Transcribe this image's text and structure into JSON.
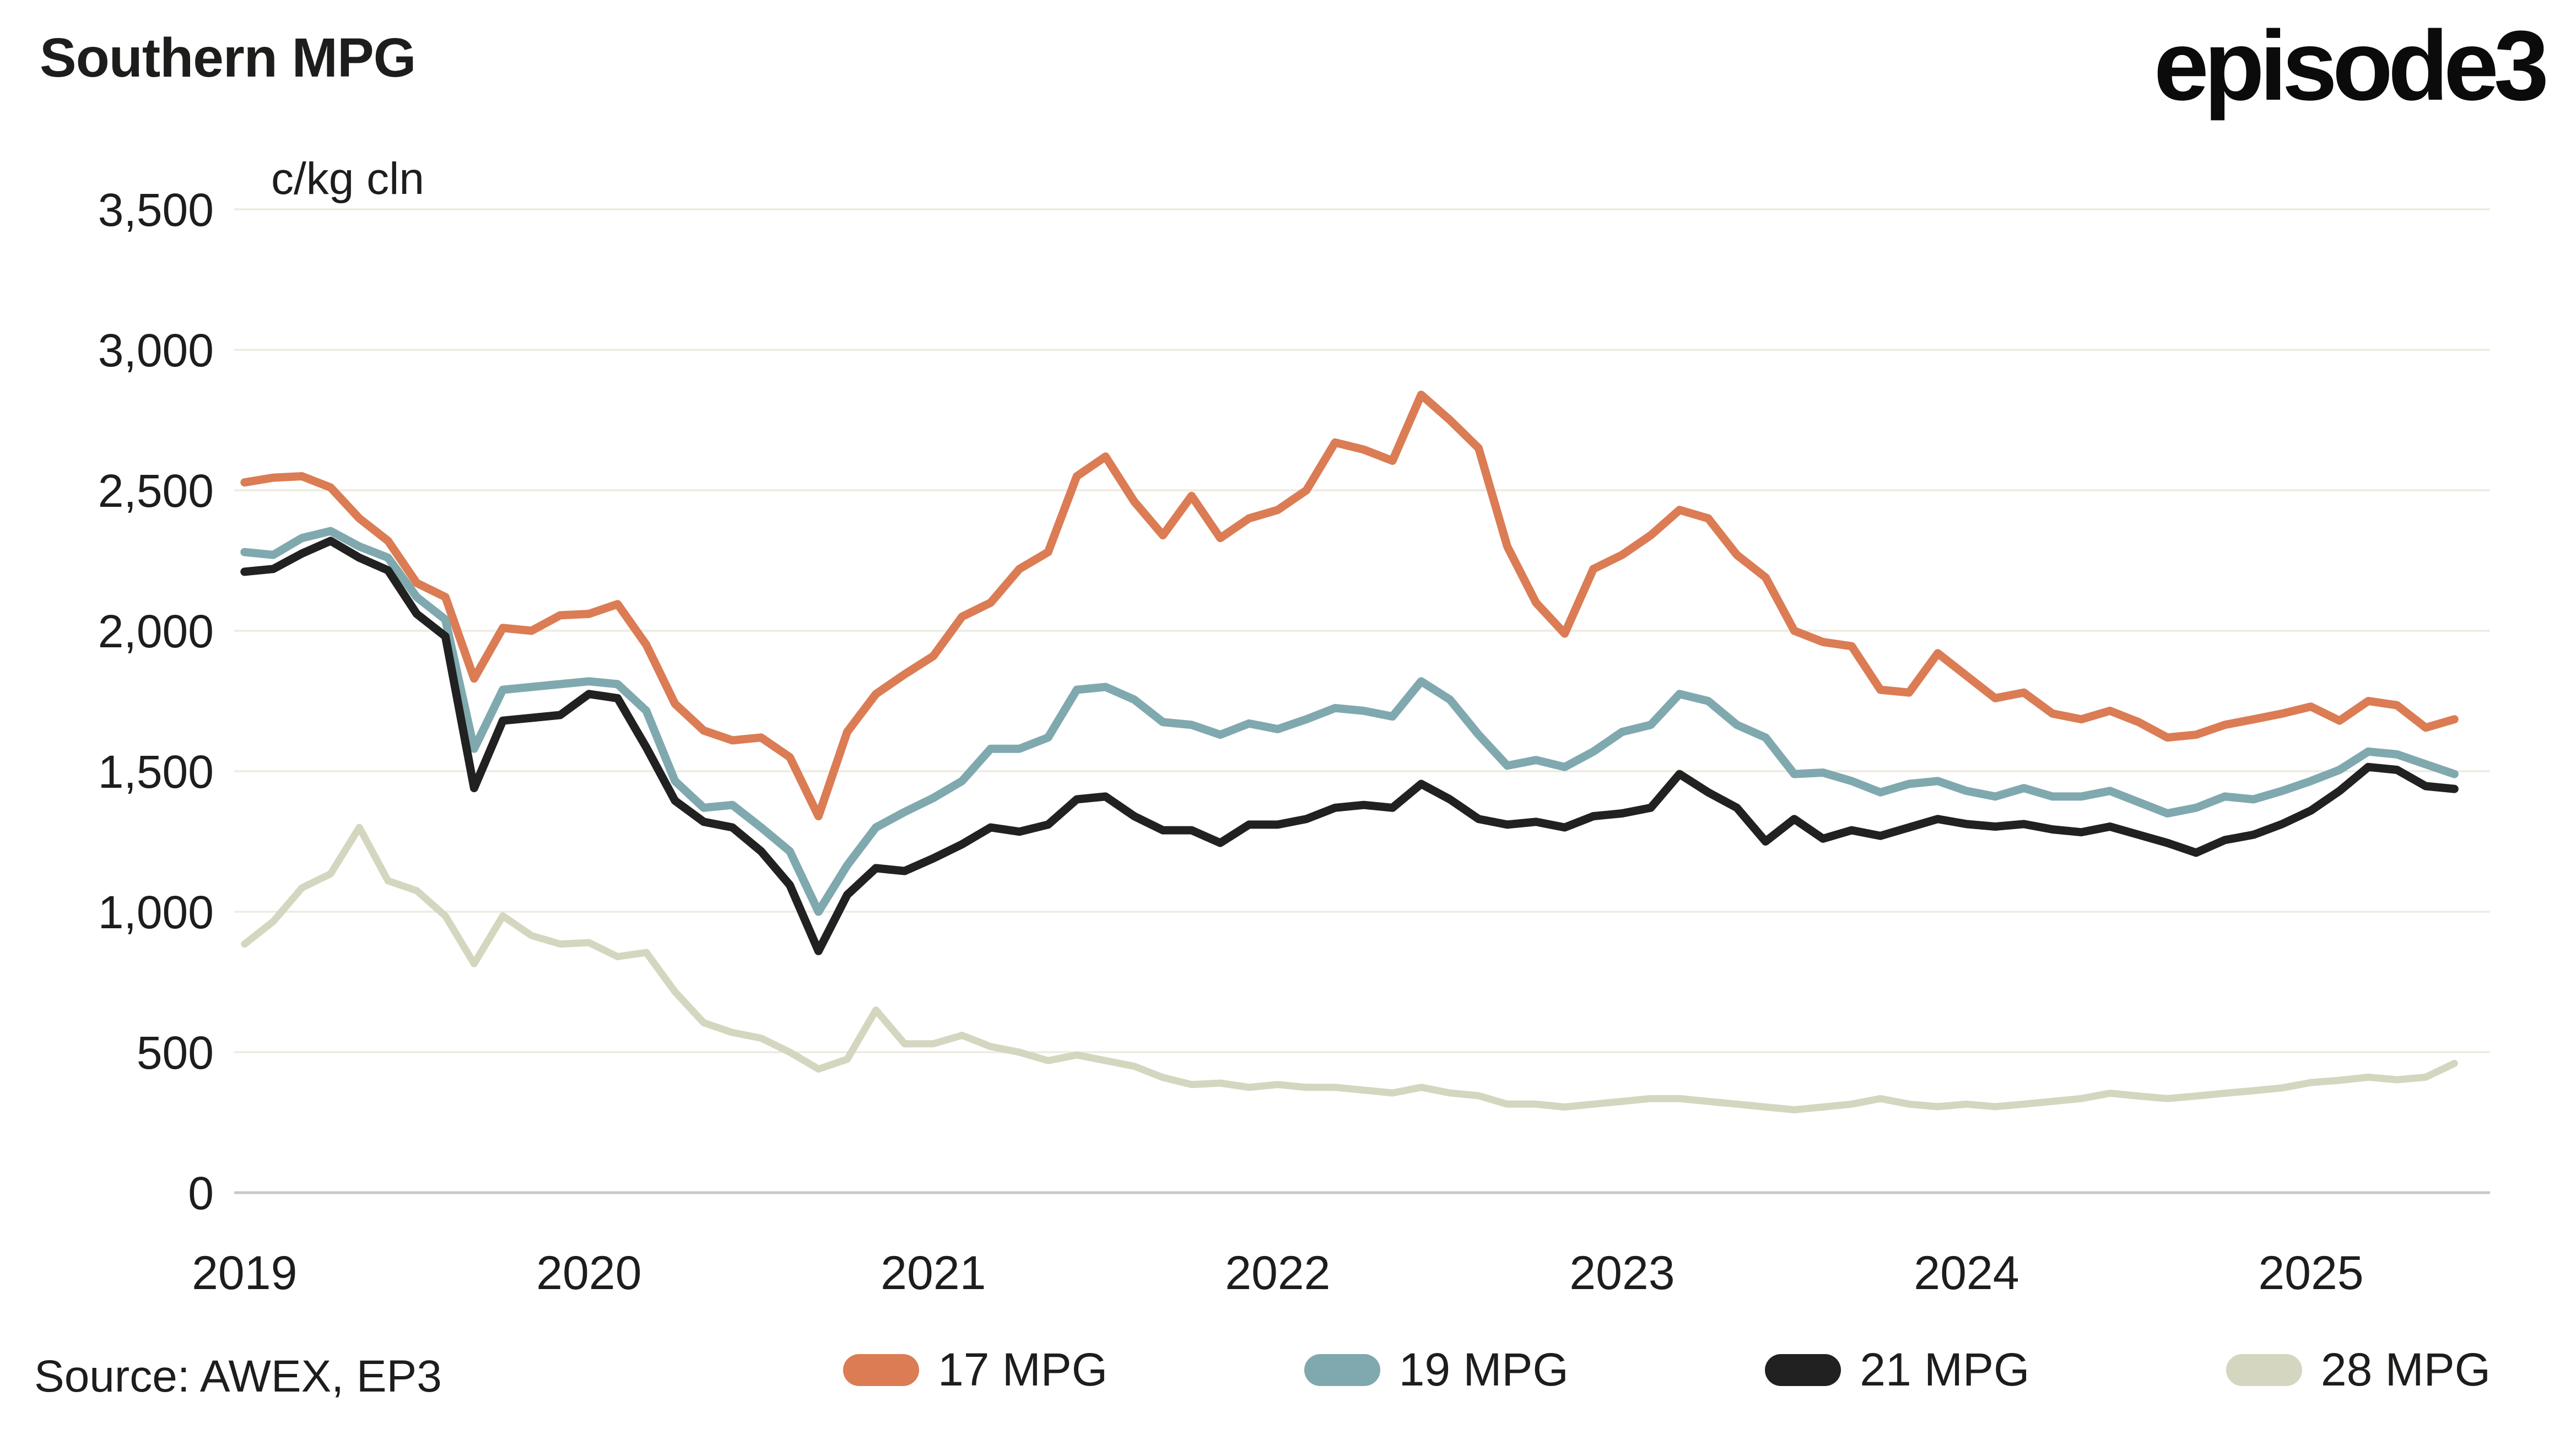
{
  "header": {
    "title": "Southern MPG",
    "unit_label": "c/kg cln",
    "logo_text": "episode3"
  },
  "source_note": "Source: AWEX, EP3",
  "legend": [
    {
      "label": "17 MPG"
    },
    {
      "label": "19 MPG"
    },
    {
      "label": "21 MPG"
    },
    {
      "label": "28 MPG"
    }
  ],
  "colors": {
    "background": "#ffffff",
    "text": "#1d1d1b",
    "gridline": "#edeadf",
    "axis_line": "#c9c9c3",
    "series_17": "#db7c54",
    "series_19": "#7fa9ae",
    "series_21": "#212121",
    "series_28": "#d5d6bf"
  },
  "chart_data": {
    "type": "line",
    "title": "Southern MPG",
    "xlabel": "",
    "ylabel": "c/kg cln",
    "ylim": [
      0,
      3500
    ],
    "y_ticks": [
      0,
      500,
      1000,
      1500,
      2000,
      2500,
      3000,
      3500
    ],
    "x_ticks": [
      2019,
      2020,
      2021,
      2022,
      2023,
      2024,
      2025
    ],
    "x_range": [
      2018.97,
      2025.52
    ],
    "x_start_year": 2019.0,
    "x_step_years": 0.08333,
    "grid": "horizontal",
    "legend_position": "bottom",
    "series": [
      {
        "name": "17 MPG",
        "color": "#db7c54",
        "values": [
          2528,
          2545,
          2550,
          2510,
          2400,
          2320,
          2170,
          2120,
          1830,
          2010,
          2000,
          2055,
          2060,
          2095,
          1950,
          1740,
          1645,
          1610,
          1620,
          1550,
          1340,
          1640,
          1775,
          1845,
          1910,
          2050,
          2100,
          2220,
          2280,
          2550,
          2620,
          2460,
          2340,
          2480,
          2330,
          2400,
          2430,
          2500,
          2670,
          2645,
          2605,
          2840,
          2750,
          2650,
          2300,
          2100,
          1990,
          2220,
          2270,
          2340,
          2430,
          2400,
          2270,
          2190,
          2000,
          1960,
          1945,
          1790,
          1780,
          1920,
          1840,
          1760,
          1780,
          1705,
          1685,
          1715,
          1675,
          1620,
          1630,
          1665,
          1685,
          1705,
          1730,
          1680,
          1750,
          1735,
          1655,
          1685
        ]
      },
      {
        "name": "19 MPG",
        "color": "#7fa9ae",
        "values": [
          2280,
          2270,
          2330,
          2355,
          2300,
          2260,
          2120,
          2040,
          1580,
          1790,
          1800,
          1810,
          1820,
          1810,
          1715,
          1465,
          1370,
          1380,
          1300,
          1215,
          1000,
          1165,
          1300,
          1355,
          1405,
          1465,
          1580,
          1580,
          1620,
          1790,
          1800,
          1755,
          1675,
          1665,
          1630,
          1670,
          1650,
          1685,
          1725,
          1715,
          1695,
          1820,
          1755,
          1630,
          1520,
          1540,
          1515,
          1570,
          1640,
          1665,
          1775,
          1750,
          1665,
          1620,
          1490,
          1495,
          1465,
          1425,
          1455,
          1465,
          1430,
          1410,
          1440,
          1410,
          1410,
          1430,
          1390,
          1350,
          1370,
          1410,
          1400,
          1430,
          1465,
          1505,
          1570,
          1560,
          1525,
          1490
        ]
      },
      {
        "name": "21 MPG",
        "color": "#212121",
        "values": [
          2210,
          2220,
          2275,
          2320,
          2260,
          2215,
          2060,
          1980,
          1440,
          1680,
          1690,
          1700,
          1775,
          1760,
          1585,
          1395,
          1320,
          1300,
          1215,
          1095,
          860,
          1060,
          1155,
          1145,
          1190,
          1240,
          1300,
          1285,
          1310,
          1400,
          1410,
          1340,
          1290,
          1290,
          1245,
          1310,
          1310,
          1330,
          1370,
          1380,
          1370,
          1455,
          1400,
          1330,
          1310,
          1320,
          1300,
          1340,
          1350,
          1370,
          1490,
          1425,
          1370,
          1250,
          1330,
          1260,
          1290,
          1270,
          1300,
          1330,
          1312,
          1303,
          1312,
          1293,
          1283,
          1303,
          1274,
          1245,
          1210,
          1255,
          1274,
          1312,
          1360,
          1430,
          1515,
          1505,
          1447,
          1437
        ]
      },
      {
        "name": "28 MPG",
        "color": "#d5d6bf",
        "values": [
          885,
          965,
          1085,
          1135,
          1300,
          1110,
          1075,
          985,
          815,
          985,
          915,
          885,
          890,
          840,
          855,
          715,
          605,
          570,
          550,
          500,
          440,
          475,
          650,
          530,
          530,
          560,
          520,
          500,
          470,
          490,
          470,
          450,
          410,
          385,
          390,
          375,
          385,
          375,
          375,
          365,
          355,
          375,
          355,
          345,
          315,
          315,
          305,
          315,
          325,
          335,
          335,
          325,
          315,
          305,
          295,
          305,
          315,
          335,
          315,
          306,
          315,
          306,
          315,
          325,
          335,
          354,
          344,
          335,
          344,
          354,
          363,
          373,
          392,
          400,
          411,
          402,
          411,
          460
        ]
      }
    ]
  }
}
